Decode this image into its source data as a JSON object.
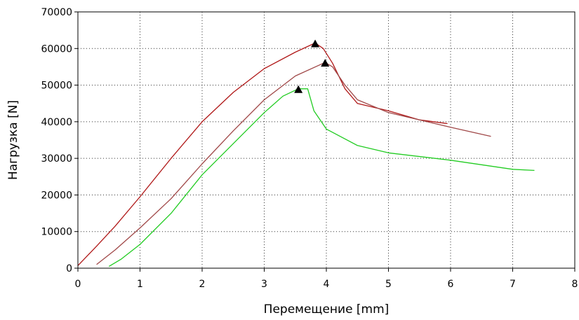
{
  "chart_data": {
    "type": "line",
    "title": "",
    "xlabel": "Перемещение [mm]",
    "ylabel": "Нагрузка [N]",
    "xlim": [
      0,
      8
    ],
    "ylim": [
      0,
      70000
    ],
    "xticks": [
      "0",
      "1",
      "2",
      "3",
      "4",
      "5",
      "6",
      "7",
      "8"
    ],
    "yticks": [
      "0",
      "10000",
      "20000",
      "30000",
      "40000",
      "50000",
      "60000",
      "70000"
    ],
    "grid": true,
    "legend": "none",
    "series": [
      {
        "color": "#b01818",
        "x": [
          0.0,
          0.3,
          0.6,
          1.0,
          1.5,
          2.0,
          2.5,
          3.0,
          3.5,
          3.82,
          3.95,
          4.1,
          4.3,
          4.5,
          5.0,
          5.5,
          5.95
        ],
        "y": [
          700,
          6000,
          11500,
          19500,
          30000,
          40000,
          48000,
          54500,
          59000,
          61500,
          60000,
          56000,
          49000,
          45000,
          43000,
          40500,
          39500
        ],
        "peak": {
          "x": 3.82,
          "y": 61500
        }
      },
      {
        "color": "#a04848",
        "x": [
          0.3,
          0.6,
          1.0,
          1.5,
          2.0,
          2.5,
          3.0,
          3.5,
          3.98,
          4.1,
          4.3,
          4.5,
          5.0,
          5.5,
          6.0,
          6.65
        ],
        "y": [
          1000,
          5000,
          11000,
          19000,
          28500,
          37500,
          46000,
          52500,
          56200,
          55000,
          50000,
          46000,
          42500,
          40500,
          38500,
          36000
        ],
        "peak": {
          "x": 3.98,
          "y": 56200
        }
      },
      {
        "color": "#22cc22",
        "x": [
          0.5,
          0.7,
          1.0,
          1.5,
          2.0,
          2.5,
          3.0,
          3.3,
          3.55,
          3.7,
          3.8,
          4.0,
          4.5,
          5.0,
          6.0,
          7.0,
          7.35
        ],
        "y": [
          500,
          2500,
          6500,
          15000,
          25500,
          34000,
          42500,
          47000,
          49000,
          49000,
          43000,
          38000,
          33500,
          31500,
          29500,
          27000,
          26700
        ],
        "peak": {
          "x": 3.55,
          "y": 49000
        }
      }
    ]
  }
}
